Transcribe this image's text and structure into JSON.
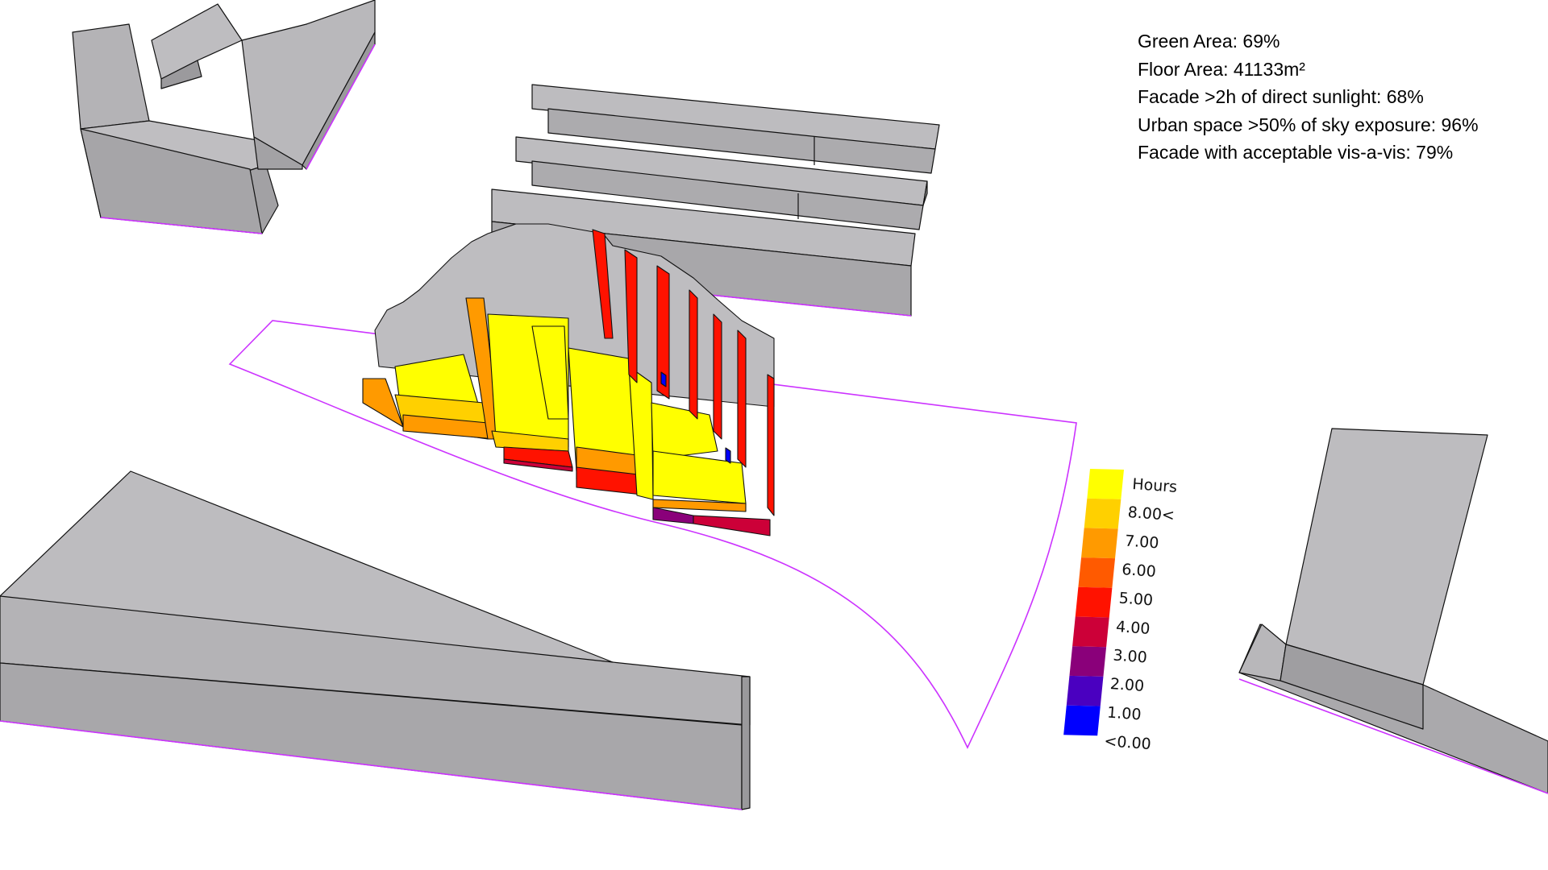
{
  "stats": [
    "Green Area: 69%",
    "Floor Area: 41133m²",
    "Facade >2h of direct sunlight: 68%",
    "Urban space >50% of sky exposure: 96%",
    "Facade with acceptable vis-a-vis: 79%"
  ],
  "legend": {
    "title": "Hours",
    "labels": [
      "8.00<",
      "7.00",
      "6.00",
      "5.00",
      "4.00",
      "3.00",
      "2.00",
      "1.00",
      "<0.00"
    ],
    "colors": [
      "#ffff00",
      "#ffd000",
      "#ff9a00",
      "#ff5a00",
      "#ff1200",
      "#cc0038",
      "#8a007a",
      "#4a00c0",
      "#0000ff"
    ]
  },
  "colors": {
    "building_top": "#bdbcbf",
    "building_side": "#a9a8ab",
    "building_dark": "#969598",
    "site_outline": "#cc33ff"
  }
}
